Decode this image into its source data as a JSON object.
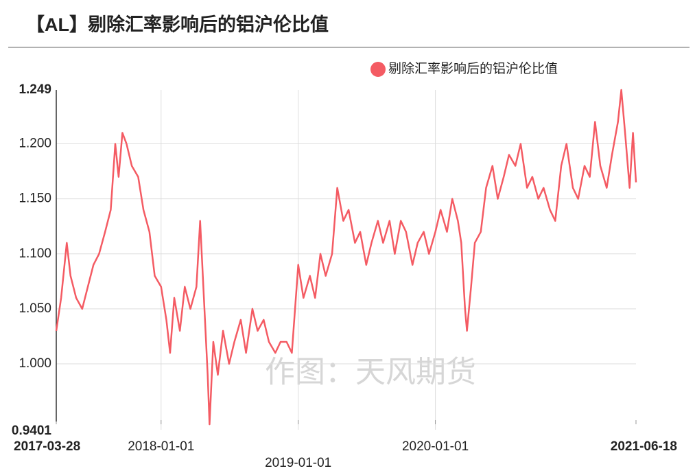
{
  "chart_data": {
    "type": "line",
    "title": "【AL】剔除汇率影响后的铝沪伦比值",
    "watermark": "作图：天风期货",
    "grid": true,
    "x": [
      "2017-03-28",
      "2017-04-10",
      "2017-04-25",
      "2017-05-05",
      "2017-05-20",
      "2017-06-05",
      "2017-06-20",
      "2017-07-05",
      "2017-07-20",
      "2017-08-05",
      "2017-08-20",
      "2017-09-01",
      "2017-09-10",
      "2017-09-20",
      "2017-10-01",
      "2017-10-15",
      "2017-11-01",
      "2017-11-15",
      "2017-12-01",
      "2017-12-15",
      "2018-01-01",
      "2018-01-15",
      "2018-01-25",
      "2018-02-05",
      "2018-02-20",
      "2018-03-05",
      "2018-03-20",
      "2018-04-05",
      "2018-04-15",
      "2018-04-25",
      "2018-05-05",
      "2018-05-10",
      "2018-05-20",
      "2018-06-01",
      "2018-06-15",
      "2018-07-01",
      "2018-07-15",
      "2018-08-01",
      "2018-08-15",
      "2018-09-01",
      "2018-09-15",
      "2018-10-01",
      "2018-10-15",
      "2018-11-01",
      "2018-11-15",
      "2018-12-01",
      "2018-12-15",
      "2019-01-01",
      "2019-01-15",
      "2019-02-01",
      "2019-02-15",
      "2019-03-01",
      "2019-03-15",
      "2019-04-01",
      "2019-04-15",
      "2019-05-01",
      "2019-05-15",
      "2019-06-01",
      "2019-06-15",
      "2019-07-01",
      "2019-07-15",
      "2019-08-01",
      "2019-08-15",
      "2019-09-01",
      "2019-09-15",
      "2019-10-01",
      "2019-10-15",
      "2019-11-01",
      "2019-11-15",
      "2019-12-01",
      "2019-12-15",
      "2020-01-01",
      "2020-01-15",
      "2020-02-01",
      "2020-02-15",
      "2020-03-01",
      "2020-03-10",
      "2020-03-20",
      "2020-03-25",
      "2020-04-05",
      "2020-04-15",
      "2020-05-01",
      "2020-05-15",
      "2020-06-01",
      "2020-06-15",
      "2020-07-01",
      "2020-07-15",
      "2020-08-01",
      "2020-08-15",
      "2020-09-01",
      "2020-09-15",
      "2020-10-01",
      "2020-10-15",
      "2020-11-01",
      "2020-11-15",
      "2020-12-01",
      "2020-12-15",
      "2021-01-01",
      "2021-01-15",
      "2021-02-01",
      "2021-02-15",
      "2021-03-01",
      "2021-03-15",
      "2021-04-01",
      "2021-04-15",
      "2021-05-01",
      "2021-05-10",
      "2021-05-20",
      "2021-06-01",
      "2021-06-10",
      "2021-06-18"
    ],
    "series": [
      {
        "name": "剔除汇率影响后的铝沪伦比值",
        "color": "#f45b63",
        "values": [
          1.03,
          1.06,
          1.11,
          1.08,
          1.06,
          1.05,
          1.07,
          1.09,
          1.1,
          1.12,
          1.14,
          1.2,
          1.17,
          1.21,
          1.2,
          1.18,
          1.17,
          1.14,
          1.12,
          1.08,
          1.07,
          1.04,
          1.01,
          1.06,
          1.03,
          1.07,
          1.05,
          1.07,
          1.13,
          1.06,
          0.99,
          0.945,
          1.02,
          0.99,
          1.03,
          1.0,
          1.02,
          1.04,
          1.01,
          1.05,
          1.03,
          1.04,
          1.02,
          1.01,
          1.02,
          1.02,
          1.01,
          1.09,
          1.06,
          1.08,
          1.06,
          1.1,
          1.08,
          1.1,
          1.16,
          1.13,
          1.14,
          1.11,
          1.12,
          1.09,
          1.11,
          1.13,
          1.11,
          1.13,
          1.1,
          1.13,
          1.12,
          1.09,
          1.11,
          1.12,
          1.1,
          1.12,
          1.14,
          1.12,
          1.15,
          1.13,
          1.11,
          1.05,
          1.03,
          1.07,
          1.11,
          1.12,
          1.16,
          1.18,
          1.15,
          1.17,
          1.19,
          1.18,
          1.2,
          1.16,
          1.17,
          1.15,
          1.16,
          1.14,
          1.13,
          1.18,
          1.2,
          1.16,
          1.15,
          1.18,
          1.17,
          1.22,
          1.18,
          1.16,
          1.19,
          1.22,
          1.249,
          1.21,
          1.16,
          1.21,
          1.165
        ]
      }
    ],
    "xlim": [
      "2017-03-28",
      "2021-06-18"
    ],
    "xticks": [
      "2017-03-28",
      "2018-01-01",
      "2019-01-01",
      "2020-01-01",
      "2021-06-18"
    ],
    "ylim": [
      0.9401,
      1.249
    ],
    "yticks": [
      0.9401,
      {
        "value": 1,
        "label": "1.000"
      },
      {
        "value": 1.05,
        "label": "1.050"
      },
      {
        "value": 1.1,
        "label": "1.100"
      },
      {
        "value": 1.15,
        "label": "1.150"
      },
      {
        "value": 1.2,
        "label": "1.200"
      },
      1.249
    ]
  }
}
